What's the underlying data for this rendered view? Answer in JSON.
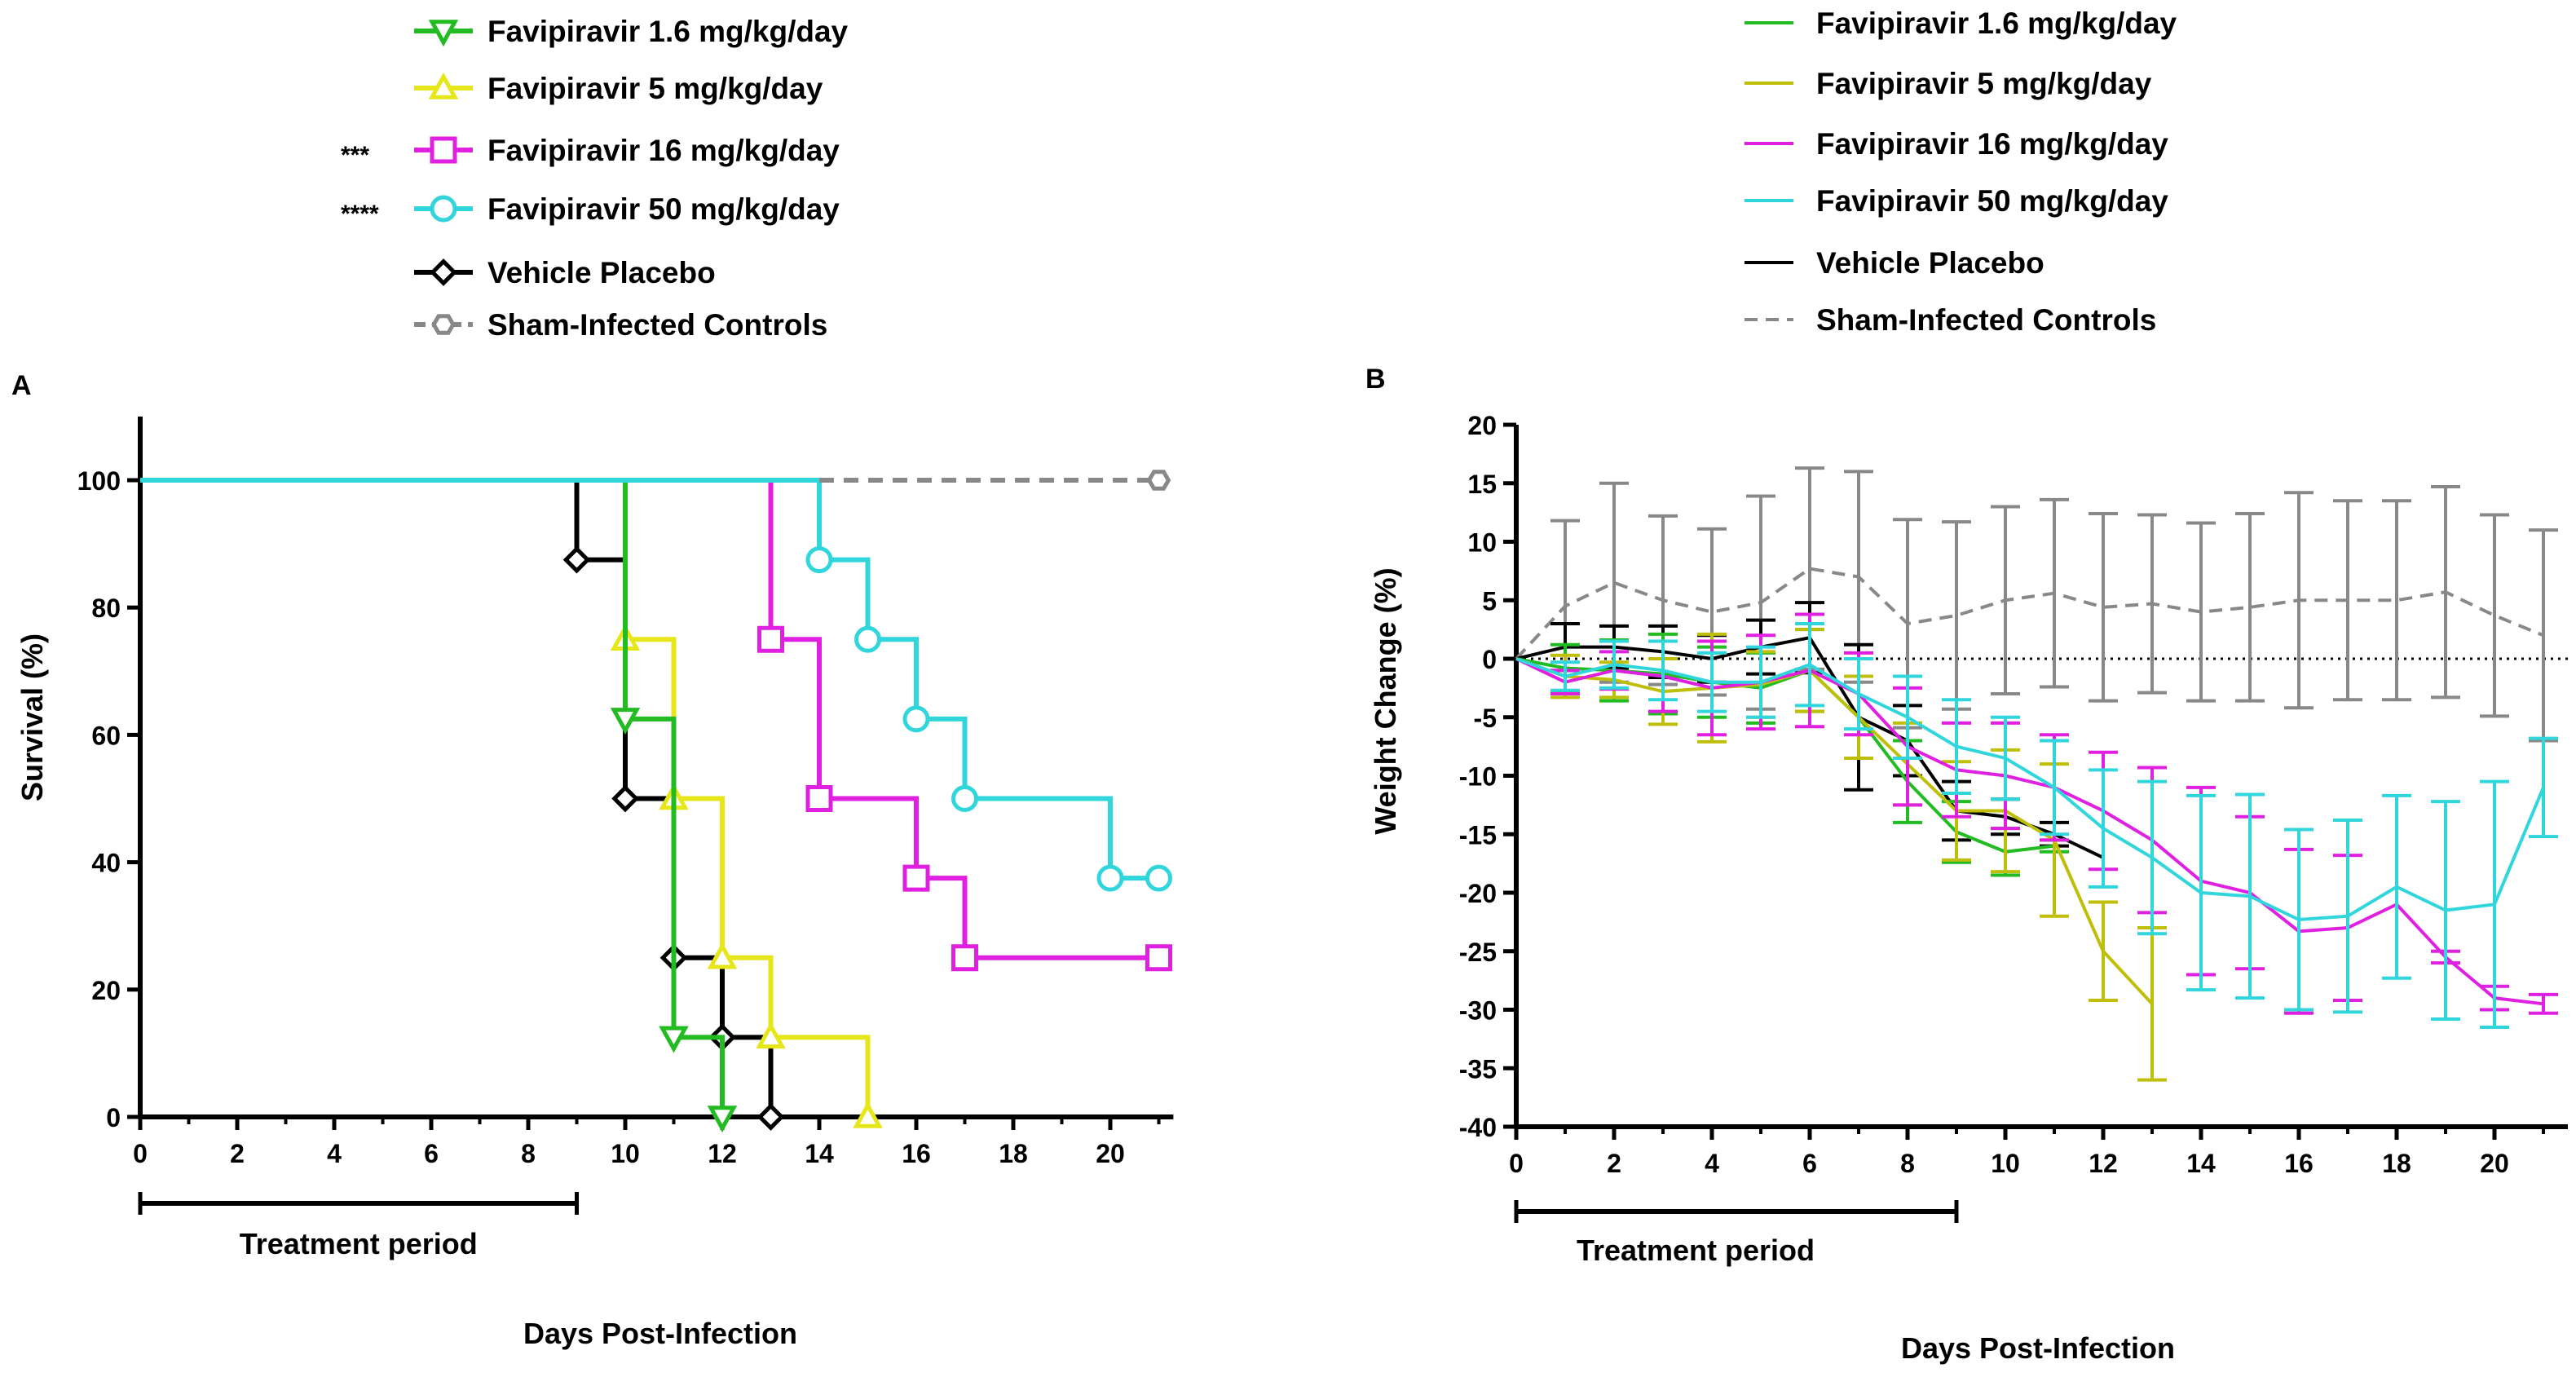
{
  "colors": {
    "green": "#22bb22",
    "yellow": "#e6e619",
    "olive": "#bfbf0a",
    "magenta": "#e020e0",
    "cyan": "#30d6dc",
    "black": "#000000",
    "gray": "#888888"
  },
  "legend_a": {
    "entries": [
      {
        "label": "Favipiravir 1.6 mg/kg/day",
        "marker": "triangle-down",
        "color": "green",
        "sig": ""
      },
      {
        "label": "Favipiravir 5 mg/kg/day",
        "marker": "triangle-up",
        "color": "yellow",
        "sig": ""
      },
      {
        "label": "Favipiravir 16 mg/kg/day",
        "marker": "square",
        "color": "magenta",
        "sig": "***"
      },
      {
        "label": "Favipiravir 50 mg/kg/day",
        "marker": "circle",
        "color": "cyan",
        "sig": "****"
      },
      {
        "label": "Vehicle Placebo",
        "marker": "diamond",
        "color": "black",
        "sig": ""
      },
      {
        "label": "Sham-Infected Controls",
        "marker": "hexagon",
        "color": "gray",
        "sig": "",
        "dashed": true
      }
    ]
  },
  "legend_b": {
    "entries": [
      {
        "label": "Favipiravir 1.6 mg/kg/day",
        "color": "green"
      },
      {
        "label": "Favipiravir 5 mg/kg/day",
        "color": "olive"
      },
      {
        "label": "Favipiravir 16 mg/kg/day",
        "color": "magenta"
      },
      {
        "label": "Favipiravir 50 mg/kg/day",
        "color": "cyan"
      },
      {
        "label": "Vehicle Placebo",
        "color": "black"
      },
      {
        "label": "Sham-Infected Controls",
        "color": "gray",
        "dashed": true
      }
    ]
  },
  "chart_data": [
    {
      "type": "line",
      "panel": "A",
      "subtype": "kaplan-meier",
      "xlabel": "Days Post-Infection",
      "ylabel": "Survival (%)",
      "xlim": [
        0,
        21.3
      ],
      "ylim": [
        0,
        110
      ],
      "xticks": [
        0,
        2,
        4,
        6,
        8,
        10,
        12,
        14,
        16,
        18,
        20
      ],
      "yticks": [
        0,
        20,
        40,
        60,
        80,
        100
      ],
      "treatment_period": {
        "label": "Treatment period",
        "start": 0,
        "end": 9
      },
      "series": [
        {
          "name": "Vehicle Placebo",
          "color": "black",
          "marker": "diamond",
          "steps": [
            [
              0,
              100
            ],
            [
              9,
              87.5
            ],
            [
              10,
              50
            ],
            [
              11,
              25
            ],
            [
              12,
              12.5
            ],
            [
              13,
              0
            ]
          ],
          "markers": [
            [
              9,
              87.5
            ],
            [
              10,
              50
            ],
            [
              11,
              25
            ],
            [
              12,
              12.5
            ],
            [
              13,
              0
            ]
          ]
        },
        {
          "name": "Favipiravir 5 mg/kg/day",
          "color": "yellow",
          "marker": "triangle-up",
          "steps": [
            [
              0,
              100
            ],
            [
              10,
              75
            ],
            [
              11,
              50
            ],
            [
              12,
              25
            ],
            [
              13,
              12.5
            ],
            [
              15,
              0
            ]
          ],
          "markers": [
            [
              10,
              75
            ],
            [
              11,
              50
            ],
            [
              12,
              25
            ],
            [
              13,
              12.5
            ],
            [
              15,
              0
            ]
          ]
        },
        {
          "name": "Favipiravir 1.6 mg/kg/day",
          "color": "green",
          "marker": "triangle-down",
          "steps": [
            [
              0,
              100
            ],
            [
              10,
              62.5
            ],
            [
              11,
              12.5
            ],
            [
              12,
              0
            ]
          ],
          "markers": [
            [
              10,
              62.5
            ],
            [
              11,
              12.5
            ],
            [
              12,
              0
            ]
          ]
        },
        {
          "name": "Favipiravir 16 mg/kg/day",
          "color": "magenta",
          "marker": "square",
          "steps": [
            [
              0,
              100
            ],
            [
              13,
              75
            ],
            [
              14,
              50
            ],
            [
              16,
              37.5
            ],
            [
              17,
              25
            ],
            [
              21,
              25
            ]
          ],
          "markers": [
            [
              13,
              75
            ],
            [
              14,
              50
            ],
            [
              16,
              37.5
            ],
            [
              17,
              25
            ],
            [
              21,
              25
            ]
          ]
        },
        {
          "name": "Favipiravir 50 mg/kg/day",
          "color": "cyan",
          "marker": "circle",
          "steps": [
            [
              0,
              100
            ],
            [
              14,
              87.5
            ],
            [
              15,
              75
            ],
            [
              16,
              62.5
            ],
            [
              17,
              50
            ],
            [
              20,
              37.5
            ],
            [
              21,
              37.5
            ]
          ],
          "markers": [
            [
              14,
              87.5
            ],
            [
              15,
              75
            ],
            [
              16,
              62.5
            ],
            [
              17,
              50
            ],
            [
              20,
              37.5
            ],
            [
              21,
              37.5
            ]
          ]
        },
        {
          "name": "Sham-Infected Controls",
          "color": "gray",
          "marker": "hexagon",
          "dashed": true,
          "steps": [
            [
              14,
              100
            ],
            [
              21,
              100
            ]
          ],
          "markers": [
            [
              21,
              100
            ]
          ]
        }
      ]
    },
    {
      "type": "line",
      "panel": "B",
      "xlabel": "Days Post-Infection",
      "ylabel": "Weight Change (%)",
      "xlim": [
        0,
        21.5
      ],
      "ylim": [
        -40,
        20
      ],
      "xticks": [
        0,
        2,
        4,
        6,
        8,
        10,
        12,
        14,
        16,
        18,
        20
      ],
      "yticks": [
        20,
        15,
        10,
        5,
        0,
        -5,
        -10,
        -15,
        -20,
        -25,
        -30,
        -35,
        -40
      ],
      "reference_line": 0,
      "treatment_period": {
        "label": "Treatment period",
        "start": 0,
        "end": 9
      },
      "series": [
        {
          "name": "Sham-Infected Controls",
          "color": "gray",
          "dashed": true,
          "x": [
            0,
            1,
            2,
            3,
            4,
            5,
            6,
            7,
            8,
            9,
            10,
            11,
            12,
            13,
            14,
            15,
            16,
            17,
            18,
            19,
            20,
            21
          ],
          "y": [
            0,
            4.5,
            6.5,
            5,
            4,
            4.8,
            7.7,
            7,
            3,
            3.7,
            5,
            5.6,
            4.4,
            4.7,
            4,
            4.4,
            5,
            5,
            5,
            5.7,
            3.7,
            2
          ],
          "err": [
            0,
            7.3,
            8.5,
            7.2,
            7.1,
            9.1,
            8.6,
            9,
            8.9,
            8,
            8,
            8,
            8,
            7.6,
            7.6,
            8,
            9.2,
            8.5,
            8.5,
            9,
            8.6,
            9
          ]
        },
        {
          "name": "Vehicle Placebo",
          "color": "black",
          "x": [
            0,
            1,
            2,
            3,
            4,
            5,
            6,
            7,
            8,
            9,
            10,
            11,
            12
          ],
          "y": [
            0,
            1,
            1,
            0.6,
            0,
            1,
            1.8,
            -5,
            -7,
            -13,
            -13.5,
            -15,
            -17
          ],
          "err": [
            0,
            2,
            1.8,
            2.2,
            2,
            2.3,
            3,
            6.2,
            3,
            2.5,
            1.5,
            1,
            0
          ]
        },
        {
          "name": "Favipiravir 1.6 mg/kg/day",
          "color": "green",
          "x": [
            0,
            1,
            2,
            3,
            4,
            5,
            6,
            7,
            8,
            9,
            10,
            11
          ],
          "y": [
            0,
            -0.8,
            -1,
            -1.3,
            -2,
            -2.5,
            -1,
            -5,
            -10.5,
            -14.8,
            -16.5,
            -16
          ],
          "err": [
            0,
            2,
            2.6,
            3.4,
            3,
            3,
            3.5,
            3.5,
            3.5,
            2.6,
            2,
            0.5
          ]
        },
        {
          "name": "Favipiravir 5 mg/kg/day",
          "color": "olive",
          "x": [
            0,
            1,
            2,
            3,
            4,
            5,
            6,
            7,
            8,
            9,
            10,
            11,
            12,
            13
          ],
          "y": [
            0,
            -1.5,
            -1.8,
            -2.8,
            -2.5,
            -2.2,
            -1,
            -5,
            -9,
            -13,
            -13,
            -15.5,
            -25,
            -29.5
          ],
          "err": [
            0,
            1.8,
            1.5,
            2.8,
            4.6,
            2.8,
            3.5,
            3.5,
            3.5,
            4.2,
            5.2,
            6.5,
            4.2,
            6.5
          ]
        },
        {
          "name": "Favipiravir 16 mg/kg/day",
          "color": "magenta",
          "x": [
            0,
            1,
            2,
            3,
            4,
            5,
            6,
            7,
            8,
            9,
            10,
            11,
            12,
            13,
            14,
            15,
            16,
            17,
            18,
            19,
            20,
            21
          ],
          "y": [
            0,
            -2,
            -1,
            -1.5,
            -2.5,
            -2,
            -1,
            -3,
            -7.5,
            -9.5,
            -10,
            -11,
            -13,
            -15.5,
            -19,
            -20,
            -23.3,
            -23,
            -21,
            -25.5,
            -29,
            -29.5
          ],
          "err": [
            0,
            1,
            1.6,
            3,
            4,
            4,
            4.8,
            3.5,
            5,
            4,
            4.5,
            4.5,
            5,
            6.2,
            8,
            6.5,
            7,
            6.2,
            0,
            0.5,
            1,
            0.8
          ]
        },
        {
          "name": "Favipiravir 50 mg/kg/day",
          "color": "cyan",
          "x": [
            0,
            1,
            2,
            3,
            4,
            5,
            6,
            7,
            8,
            9,
            10,
            11,
            12,
            13,
            14,
            15,
            16,
            17,
            18,
            19,
            20,
            21
          ],
          "y": [
            0,
            -1.5,
            -0.5,
            -1,
            -2,
            -2,
            -0.5,
            -3,
            -5,
            -7.5,
            -8.5,
            -11,
            -14.5,
            -17,
            -20,
            -20.3,
            -22.3,
            -22,
            -19.5,
            -21.5,
            -21,
            -11
          ],
          "err": [
            0,
            1.2,
            2,
            2.5,
            2.5,
            3,
            3.5,
            3,
            3.5,
            4,
            3.5,
            4,
            5,
            6.5,
            8.3,
            8.7,
            7.7,
            8.2,
            7.8,
            9.3,
            10.5,
            4.2
          ]
        }
      ]
    }
  ]
}
